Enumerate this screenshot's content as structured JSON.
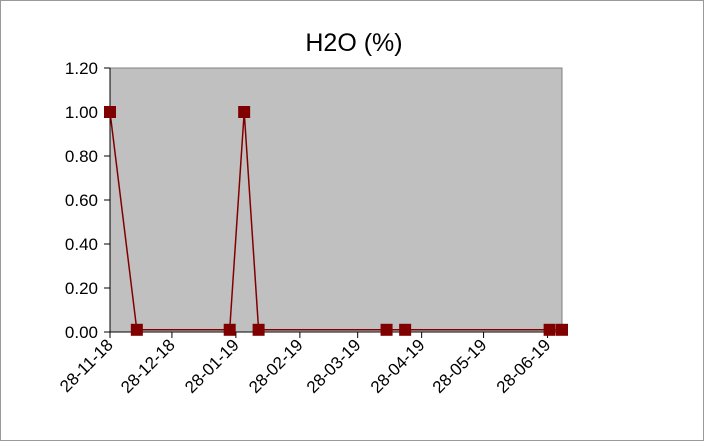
{
  "chart_data": {
    "type": "line",
    "title": "H2O (%)",
    "xlabel": "",
    "ylabel": "",
    "x_axis": {
      "type": "date",
      "min": "2018-11-28",
      "max": "2019-07-05",
      "tick_dates": [
        "2018-11-28",
        "2018-12-28",
        "2019-01-28",
        "2019-02-28",
        "2019-03-28",
        "2019-04-28",
        "2019-05-28",
        "2019-06-28"
      ],
      "tick_labels": [
        "28-11-18",
        "28-12-18",
        "28-01-19",
        "28-02-19",
        "28-03-19",
        "28-04-19",
        "28-05-19",
        "28-06-19"
      ]
    },
    "y_axis": {
      "min": 0,
      "max": 1.2,
      "tick_values": [
        0,
        0.2,
        0.4,
        0.6,
        0.8,
        1.0,
        1.2
      ],
      "tick_labels": [
        "0.00",
        "0.20",
        "0.40",
        "0.60",
        "0.80",
        "1.00",
        "1.20"
      ]
    },
    "grid": false,
    "legend": "none",
    "series": [
      {
        "x": [
          "2018-11-28",
          "2018-12-11",
          "2019-01-25",
          "2019-02-01",
          "2019-02-08",
          "2019-04-11",
          "2019-04-20",
          "2019-06-29",
          "2019-07-05"
        ],
        "y": [
          1.0,
          0.01,
          0.01,
          1.0,
          0.01,
          0.01,
          0.01,
          0.01,
          0.01
        ],
        "color": "#800000",
        "marker": "square"
      }
    ],
    "plot_background": "#c0c0c0"
  }
}
